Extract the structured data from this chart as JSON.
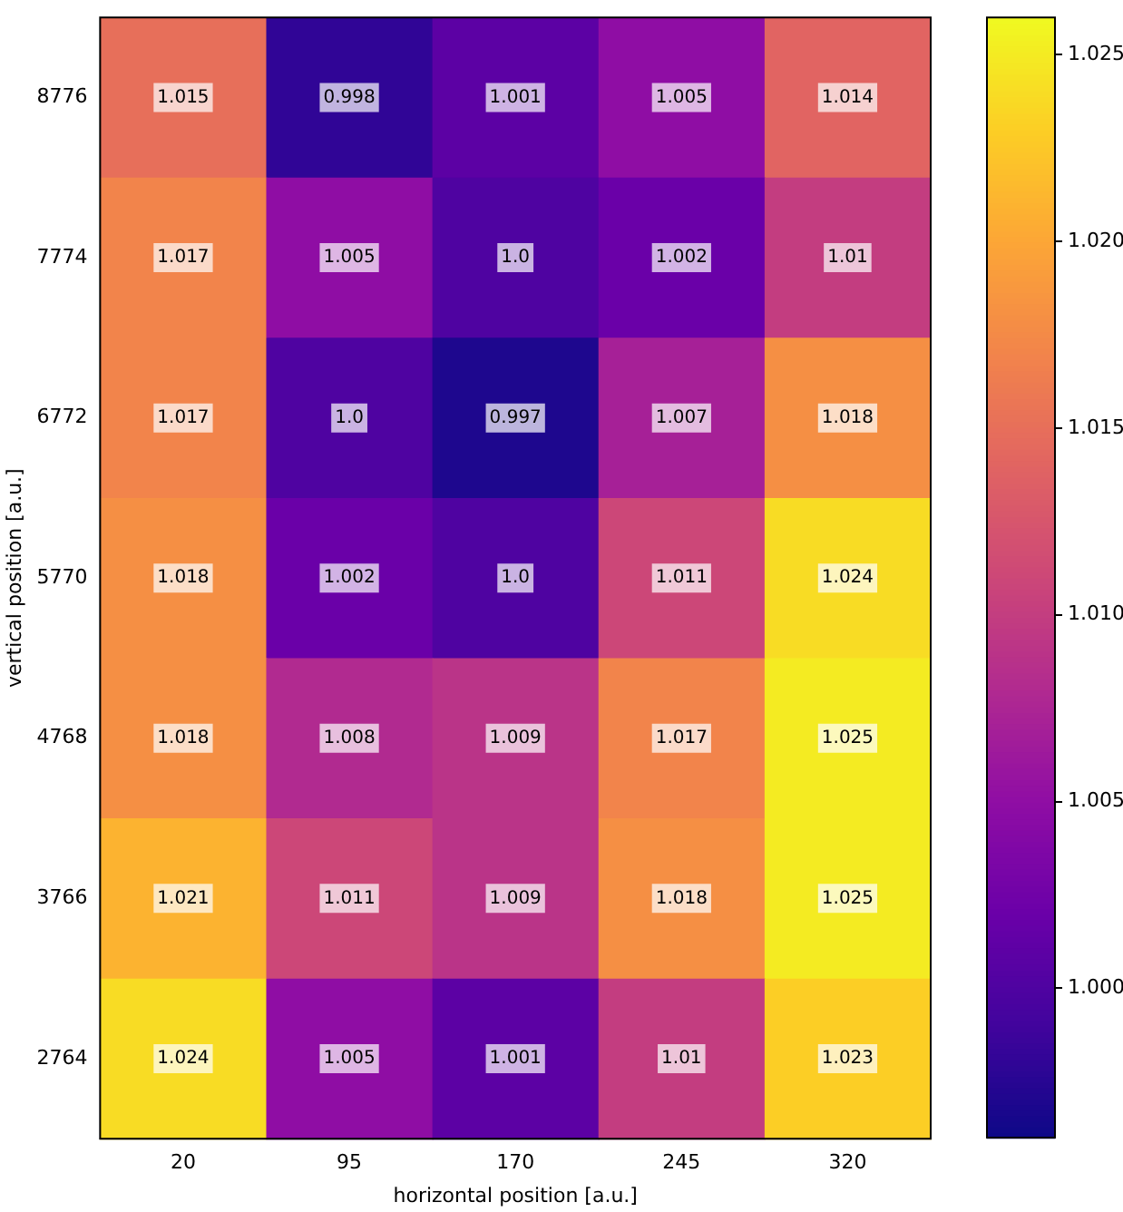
{
  "chart_data": {
    "type": "heatmap",
    "xlabel": "horizontal position [a.u.]",
    "ylabel": "vertical position [a.u.]",
    "categories": [
      "20",
      "95",
      "170",
      "245",
      "320"
    ],
    "y_categories": [
      "8776",
      "7774",
      "6772",
      "5770",
      "4768",
      "3766",
      "2764"
    ],
    "cells": [
      [
        1.015,
        0.998,
        1.001,
        1.005,
        1.014
      ],
      [
        1.017,
        1.005,
        1.0,
        1.002,
        1.01
      ],
      [
        1.017,
        1.0,
        0.997,
        1.007,
        1.018
      ],
      [
        1.018,
        1.002,
        1.0,
        1.011,
        1.024
      ],
      [
        1.018,
        1.008,
        1.009,
        1.017,
        1.025
      ],
      [
        1.021,
        1.011,
        1.009,
        1.018,
        1.025
      ],
      [
        1.024,
        1.005,
        1.001,
        1.01,
        1.023
      ]
    ],
    "cell_labels": [
      [
        "1.015",
        "0.998",
        "1.001",
        "1.005",
        "1.014"
      ],
      [
        "1.017",
        "1.005",
        "1.0",
        "1.002",
        "1.01"
      ],
      [
        "1.017",
        "1.0",
        "0.997",
        "1.007",
        "1.018"
      ],
      [
        "1.018",
        "1.002",
        "1.0",
        "1.011",
        "1.024"
      ],
      [
        "1.018",
        "1.008",
        "1.009",
        "1.017",
        "1.025"
      ],
      [
        "1.021",
        "1.011",
        "1.009",
        "1.018",
        "1.025"
      ],
      [
        "1.024",
        "1.005",
        "1.001",
        "1.01",
        "1.023"
      ]
    ],
    "clim": [
      0.996,
      1.026
    ],
    "cticks": [
      {
        "value": 1.0,
        "label": "1.000"
      },
      {
        "value": 1.005,
        "label": "1.005"
      },
      {
        "value": 1.01,
        "label": "1.010"
      },
      {
        "value": 1.015,
        "label": "1.015"
      },
      {
        "value": 1.02,
        "label": "1.020"
      },
      {
        "value": 1.025,
        "label": "1.025"
      }
    ],
    "grid": false
  }
}
